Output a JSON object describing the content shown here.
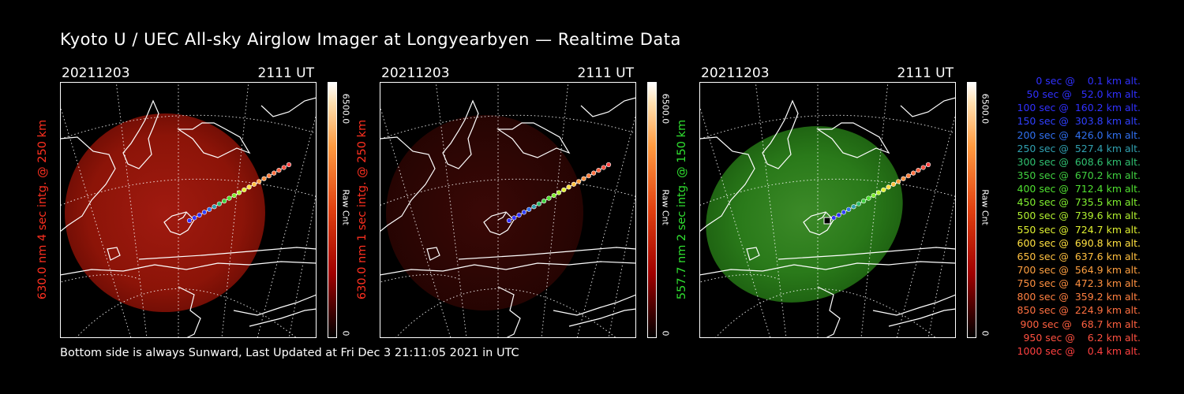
{
  "title": "Kyoto U / UEC All-sky Airglow Imager at Longyearbyen — Realtime Data",
  "footer": "Bottom side is always Sunward, Last Updated at Fri Dec  3 21:11:05 2021 in UTC",
  "panels": [
    {
      "date": "20211203",
      "time": "2111 UT",
      "ylabel": "630.0 nm 4 sec intg. @ 250 km",
      "ylabel_color": "#ff3020",
      "image": "red-bright",
      "cbar_max": "6500.0",
      "cbar_min": "0",
      "cbar_unit": "Raw Cnt"
    },
    {
      "date": "20211203",
      "time": "2111 UT",
      "ylabel": "630.0 nm 1 sec intg. @ 250 km",
      "ylabel_color": "#ff3020",
      "image": "red-dim",
      "cbar_max": "6500.0",
      "cbar_min": "0",
      "cbar_unit": "Raw Cnt"
    },
    {
      "date": "20211203",
      "time": "2111 UT",
      "ylabel": "557.7 nm 2 sec intg. @ 150 km",
      "ylabel_color": "#30e030",
      "image": "green",
      "cbar_max": "6500.0",
      "cbar_min": "0",
      "cbar_unit": "Raw Cnt"
    }
  ],
  "legend": [
    {
      "text": "   0 sec @    0.1 km alt.",
      "color": "#3030ff"
    },
    {
      "text": "  50 sec @   52.0 km alt.",
      "color": "#3030ff"
    },
    {
      "text": " 100 sec @  160.2 km alt.",
      "color": "#3030ff"
    },
    {
      "text": " 150 sec @  303.8 km alt.",
      "color": "#3040ff"
    },
    {
      "text": " 200 sec @  426.0 km alt.",
      "color": "#3070f0"
    },
    {
      "text": " 250 sec @  527.4 km alt.",
      "color": "#30a0b0"
    },
    {
      "text": " 300 sec @  608.6 km alt.",
      "color": "#30c070"
    },
    {
      "text": " 350 sec @  670.2 km alt.",
      "color": "#40d040"
    },
    {
      "text": " 400 sec @  712.4 km alt.",
      "color": "#50e030"
    },
    {
      "text": " 450 sec @  735.5 km alt.",
      "color": "#80f030"
    },
    {
      "text": " 500 sec @  739.6 km alt.",
      "color": "#b0f030"
    },
    {
      "text": " 550 sec @  724.7 km alt.",
      "color": "#e0f030"
    },
    {
      "text": " 600 sec @  690.8 km alt.",
      "color": "#ffe040"
    },
    {
      "text": " 650 sec @  637.6 km alt.",
      "color": "#ffc040"
    },
    {
      "text": " 700 sec @  564.9 km alt.",
      "color": "#ffa040"
    },
    {
      "text": " 750 sec @  472.3 km alt.",
      "color": "#ff9040"
    },
    {
      "text": " 800 sec @  359.2 km alt.",
      "color": "#ff8040"
    },
    {
      "text": " 850 sec @  224.9 km alt.",
      "color": "#ff7040"
    },
    {
      "text": " 900 sec @   68.7 km alt.",
      "color": "#ff6040"
    },
    {
      "text": " 950 sec @    6.2 km alt.",
      "color": "#ff5040"
    },
    {
      "text": "1000 sec @    0.4 km alt.",
      "color": "#ff4040"
    }
  ]
}
